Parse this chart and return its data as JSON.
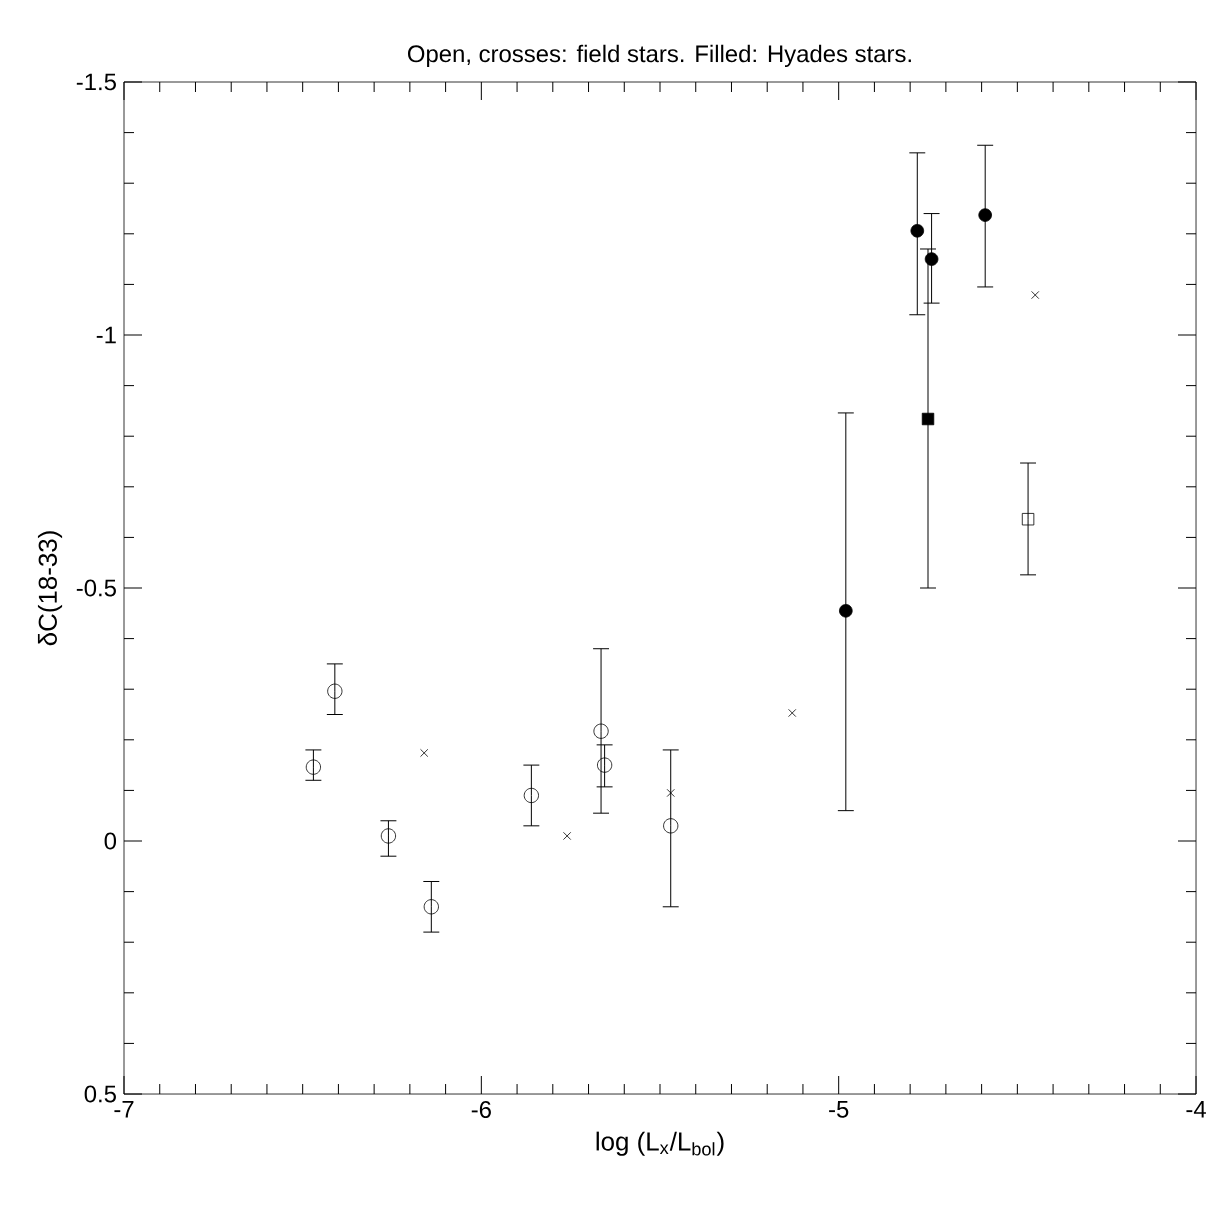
{
  "chart_data": {
    "type": "scatter",
    "title": "Open, crosses: field stars. Filled: Hyades stars.",
    "xlabel": "log (L$_{x}$/L$_{bol}$)",
    "ylabel": "δC(18-33)",
    "xlim": [
      -7,
      -4
    ],
    "ylim": [
      0.5,
      -1.5
    ],
    "xticks": [
      -7,
      -6,
      -5,
      -4
    ],
    "yticks": [
      -1.5,
      -1,
      -0.5,
      0,
      0.5
    ],
    "grid": false,
    "series": [
      {
        "color": "#000000",
        "marker": "circle",
        "x": [
          -6.47,
          -6.41,
          -6.26,
          -6.14,
          -5.86,
          -5.665,
          -5.655,
          -5.47
        ],
        "values": [
          -0.146,
          -0.296,
          -0.01,
          0.13,
          -0.09,
          -0.217,
          -0.15,
          -0.03
        ],
        "errors": [
          [
            -0.18,
            -0.12
          ],
          [
            -0.35,
            -0.25
          ],
          [
            -0.04,
            0.03
          ],
          [
            0.08,
            0.18
          ],
          [
            -0.15,
            -0.03
          ],
          [
            -0.38,
            -0.055
          ],
          [
            -0.19,
            -0.107
          ],
          [
            -0.18,
            0.13
          ]
        ]
      },
      {
        "color": "#000000",
        "marker": "cross",
        "x": [
          -6.16,
          -5.76,
          -5.47,
          -5.13,
          -4.45
        ],
        "values": [
          -0.174,
          -0.01,
          -0.095,
          -0.253,
          -1.079
        ]
      },
      {
        "color": "#000000",
        "marker": "circle",
        "x": [
          -4.98,
          -4.78,
          -4.74,
          -4.59
        ],
        "values": [
          -0.455,
          -1.206,
          -1.15,
          -1.237
        ],
        "errors": [
          [
            -0.846,
            -0.06
          ],
          [
            -1.36,
            -1.04
          ],
          [
            -1.24,
            -1.063
          ],
          [
            -1.375,
            -1.095
          ]
        ]
      },
      {
        "color": "#000000",
        "marker": "square",
        "x": [
          -4.75
        ],
        "values": [
          -0.834
        ],
        "errors": [
          [
            -1.17,
            -0.5
          ]
        ]
      },
      {
        "color": "#000000",
        "marker": "square",
        "x": [
          -4.47
        ],
        "values": [
          -0.636
        ],
        "errors": [
          [
            -0.747,
            -0.526
          ]
        ]
      }
    ]
  }
}
